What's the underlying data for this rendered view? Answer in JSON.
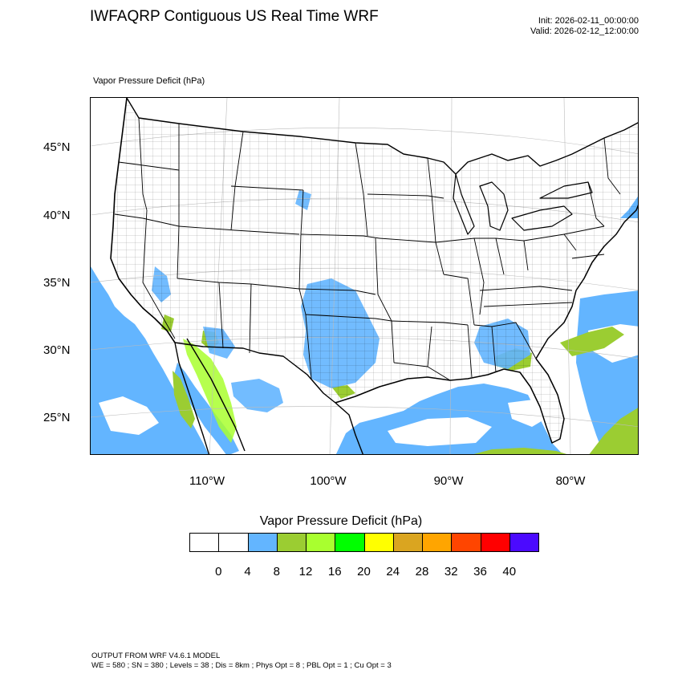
{
  "header": {
    "title": "IWFAQRP Contiguous US Real Time WRF",
    "init": "Init: 2026-02-11_00:00:00",
    "valid": "Valid: 2026-02-12_12:00:00"
  },
  "map": {
    "field_label": "Vapor Pressure Deficit   (hPa)",
    "lat_labels": [
      "45°N",
      "40°N",
      "35°N",
      "30°N",
      "25°N"
    ],
    "lon_labels": [
      "110°W",
      "100°W",
      "90°W",
      "80°W"
    ]
  },
  "legend": {
    "title": "Vapor Pressure Deficit  (hPa)",
    "colors": [
      "#ffffff",
      "#ffffff",
      "#63b5ff",
      "#9bcd32",
      "#a9ff2f",
      "#00ff00",
      "#ffff00",
      "#daa520",
      "#ffa500",
      "#ff4500",
      "#ff0000",
      "#4b0aff"
    ],
    "ticks": [
      "0",
      "4",
      "8",
      "12",
      "16",
      "20",
      "24",
      "28",
      "32",
      "36",
      "40"
    ]
  },
  "footer": {
    "line1": "OUTPUT FROM WRF V4.6.1 MODEL",
    "line2": "WE = 580 ; SN = 380 ; Levels = 38 ; Dis = 8km ; Phys Opt = 8 ; PBL Opt = 1 ; Cu Opt = 3"
  }
}
